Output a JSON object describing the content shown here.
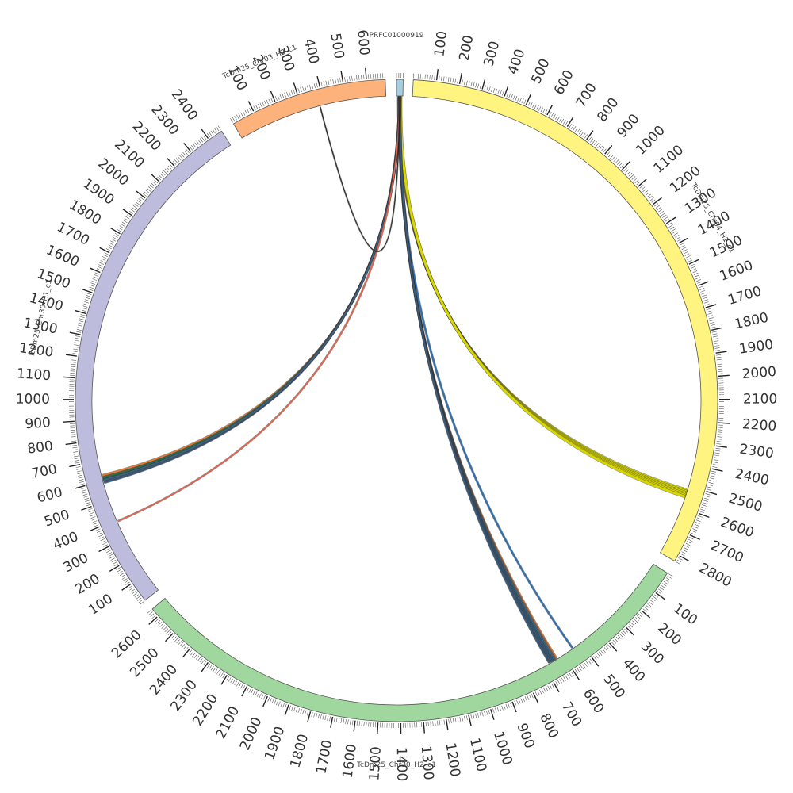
{
  "chart_data": {
    "type": "chord",
    "title": "",
    "tick_interval": 100,
    "minor_tick_interval": 10,
    "segments": [
      {
        "name": "PRFC01000919",
        "length": 30,
        "color": "#a6cee3",
        "start_angle": 0,
        "end_angle": 1.2,
        "label_angle": 0,
        "label": "PRFC01000919",
        "tick_labels": []
      },
      {
        "name": "TcDm25_Chr04_H1_c1",
        "length": 2830,
        "color": "#fff47f",
        "start_angle": 3,
        "end_angle": 120,
        "label_angle": 60,
        "label": "TcDm25_Chr04_H1_c1",
        "tick_labels": [
          "100",
          "200",
          "300",
          "400",
          "500",
          "600",
          "700",
          "800",
          "900",
          "1000",
          "1100",
          "1200",
          "1300",
          "1400",
          "1500",
          "1600",
          "1700",
          "1800",
          "1900",
          "2000",
          "2100",
          "2200",
          "2300",
          "2400",
          "2500",
          "2600",
          "2700",
          "2800"
        ]
      },
      {
        "name": "TcDm25_Chr30_H2_c1",
        "length": 2640,
        "color": "#a0d79f",
        "start_angle": 122.5,
        "end_angle": 229.5,
        "label_angle": 180,
        "label": "TcDm25_Chr30_H2_c1",
        "tick_labels": [
          "100",
          "200",
          "300",
          "400",
          "500",
          "600",
          "700",
          "800",
          "900",
          "1000",
          "1100",
          "1200",
          "1300",
          "1400",
          "1500",
          "1600",
          "1700",
          "1800",
          "1900",
          "2000",
          "2100",
          "2200",
          "2300",
          "2400",
          "2500",
          "2600"
        ]
      },
      {
        "name": "TcDm25_Chr30_H1_c1",
        "length": 2470,
        "color": "#bdbcdc",
        "start_angle": 231.5,
        "end_angle": 327,
        "label_angle": 283,
        "label": "TcDm25_Chr30_H1_c1",
        "tick_labels": [
          "100",
          "200",
          "300",
          "400",
          "500",
          "600",
          "700",
          "800",
          "900",
          "1000",
          "1100",
          "1200",
          "1300",
          "1400",
          "1500",
          "1600",
          "1700",
          "1800",
          "1900",
          "2000",
          "2100",
          "2200",
          "2300",
          "2400"
        ]
      },
      {
        "name": "TcDm25_Chr03_H2_c1",
        "length": 680,
        "color": "#fdb27b",
        "start_angle": 329.5,
        "end_angle": 358,
        "label_angle": 338,
        "label": "TcDm25_Chr03_H2_c1",
        "tick_labels": [
          "100",
          "200",
          "300",
          "400",
          "500",
          "600"
        ]
      }
    ],
    "links": [
      {
        "source": "PRFC01000919",
        "target": "TcDm25_Chr04_H1_c1",
        "target_pos": 2535,
        "color": "#d8d800",
        "width": 3,
        "count": 6
      },
      {
        "source": "PRFC01000919",
        "target": "TcDm25_Chr30_H2_c1",
        "target_pos": 545,
        "color": "#2e6fb0",
        "width": 2,
        "count": 1
      },
      {
        "source": "PRFC01000919",
        "target": "TcDm25_Chr30_H2_c1",
        "target_pos": 640,
        "color": "#d9722b",
        "width": 2,
        "count": 3
      },
      {
        "source": "PRFC01000919",
        "target": "TcDm25_Chr30_H2_c1",
        "target_pos": 652,
        "color": "#3b6e8f",
        "width": 2,
        "count": 4
      },
      {
        "source": "PRFC01000919",
        "target": "TcDm25_Chr30_H2_c1",
        "target_pos": 664,
        "color": "#3a5a78",
        "width": 2,
        "count": 4
      },
      {
        "source": "PRFC01000919",
        "target": "TcDm25_Chr30_H1_c1",
        "target_pos": 620,
        "color": "#e07a34",
        "width": 2,
        "count": 3
      },
      {
        "source": "PRFC01000919",
        "target": "TcDm25_Chr30_H1_c1",
        "target_pos": 608,
        "color": "#2d6b4f",
        "width": 2,
        "count": 3
      },
      {
        "source": "PRFC01000919",
        "target": "TcDm25_Chr30_H1_c1",
        "target_pos": 596,
        "color": "#3f5f7f",
        "width": 2,
        "count": 3
      },
      {
        "source": "PRFC01000919",
        "target": "TcDm25_Chr30_H1_c1",
        "target_pos": 390,
        "color": "#e8624a",
        "width": 1.6,
        "count": 1
      },
      {
        "source": "PRFC01000919",
        "target": "TcDm25_Chr03_H2_c1",
        "target_pos": 380,
        "color": "#222222",
        "width": 1,
        "count": 1
      }
    ]
  }
}
